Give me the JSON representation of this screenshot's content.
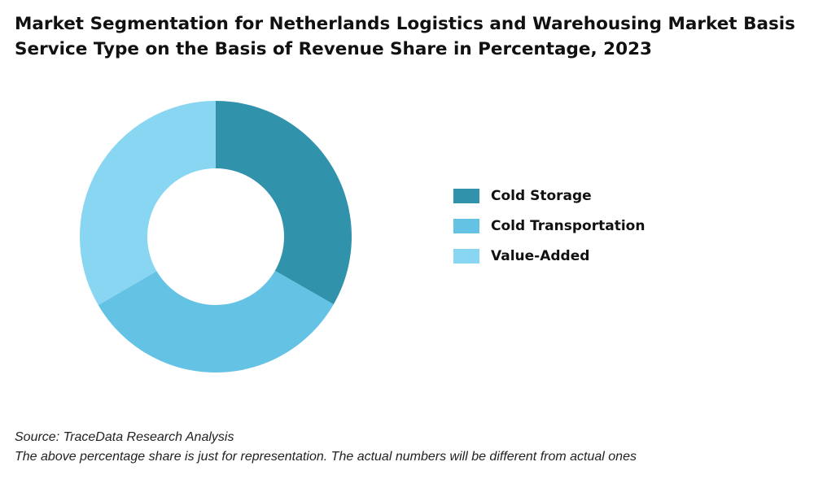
{
  "chart_data": {
    "type": "pie",
    "donut": true,
    "title": "Market Segmentation for Netherlands Logistics and Warehousing Market Basis Service Type on the Basis of Revenue Share in Percentage, 2023",
    "categories": [
      "Cold Storage",
      "Cold Transportation",
      "Value-Added"
    ],
    "values": [
      33.3,
      33.3,
      33.4
    ],
    "colors": [
      "#3192ac",
      "#64c2e5",
      "#88d6f2"
    ],
    "legend_position": "right"
  },
  "footer": {
    "source": "Source: TraceData Research Analysis",
    "note": "The above percentage share is just for representation. The actual numbers will be different from actual ones"
  }
}
